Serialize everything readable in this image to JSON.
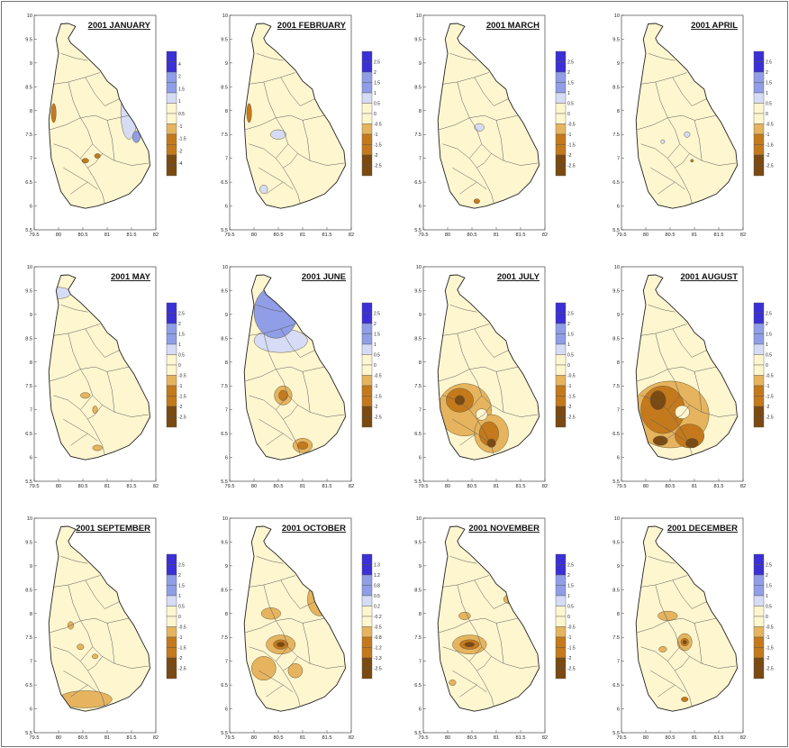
{
  "figure": {
    "y_ticks": [
      "5.5",
      "6",
      "6.5",
      "7",
      "7.5",
      "8",
      "8.5",
      "9",
      "9.5",
      "10"
    ],
    "x_ticks": [
      "79.5",
      "80",
      "80.5",
      "81",
      "81.5",
      "82"
    ],
    "colors": {
      "neg_dark": "#7a4a12",
      "neg_mid": "#c47a1c",
      "neg_light": "#e6b45e",
      "neutral": "#fdf6cf",
      "pos_light": "#d6dcf5",
      "pos_mid": "#8f9ee6",
      "pos_dark": "#3b2fd6",
      "land_line": "#5a5a5a"
    }
  },
  "panels": [
    {
      "title": "2001 JANUARY",
      "scale": [
        "4",
        "2",
        "1.5",
        "1",
        "0.5",
        "-1",
        "-1.5",
        "-2",
        "-4"
      ],
      "anomalies": [
        {
          "type": "pos_light",
          "lon": 81.45,
          "lat": 7.95,
          "rx": 0.17,
          "ry": 0.55
        },
        {
          "type": "pos_mid",
          "lon": 81.6,
          "lat": 7.45,
          "rx": 0.08,
          "ry": 0.12
        },
        {
          "type": "neg_mid",
          "lon": 79.9,
          "lat": 7.95,
          "rx": 0.05,
          "ry": 0.2
        },
        {
          "type": "neg_mid",
          "lon": 80.55,
          "lat": 6.95,
          "rx": 0.07,
          "ry": 0.05
        },
        {
          "type": "neg_mid",
          "lon": 80.8,
          "lat": 7.05,
          "rx": 0.06,
          "ry": 0.05
        }
      ]
    },
    {
      "title": "2001 FEBRUARY",
      "scale": [
        "2.5",
        "2",
        "1.5",
        "1",
        "0.5",
        "0",
        "-0.5",
        "-1",
        "-1.5",
        "-2",
        "-2.5"
      ],
      "anomalies": [
        {
          "type": "pos_light",
          "lon": 80.5,
          "lat": 7.5,
          "rx": 0.16,
          "ry": 0.1
        },
        {
          "type": "pos_light",
          "lon": 80.2,
          "lat": 6.35,
          "rx": 0.08,
          "ry": 0.09
        },
        {
          "type": "neg_mid",
          "lon": 79.9,
          "lat": 7.95,
          "rx": 0.05,
          "ry": 0.2
        }
      ]
    },
    {
      "title": "2001 MARCH",
      "scale": [
        "2.5",
        "2",
        "1.5",
        "1",
        "0.5",
        "0",
        "-0.5",
        "-1",
        "-1.5",
        "-2",
        "-2.5"
      ],
      "anomalies": [
        {
          "type": "pos_light",
          "lon": 80.65,
          "lat": 7.65,
          "rx": 0.1,
          "ry": 0.08
        },
        {
          "type": "neg_mid",
          "lon": 80.6,
          "lat": 6.1,
          "rx": 0.06,
          "ry": 0.05
        }
      ]
    },
    {
      "title": "2001 APRIL",
      "scale": [
        "2.5",
        "2",
        "1.5",
        "1",
        "0.5",
        "0",
        "-0.5",
        "-1",
        "-1.6",
        "-2",
        "-2.5"
      ],
      "anomalies": [
        {
          "type": "pos_light",
          "lon": 80.85,
          "lat": 7.5,
          "rx": 0.06,
          "ry": 0.06
        },
        {
          "type": "pos_light",
          "lon": 80.35,
          "lat": 7.35,
          "rx": 0.04,
          "ry": 0.04
        },
        {
          "type": "neg_mid",
          "lon": 80.95,
          "lat": 6.95,
          "rx": 0.03,
          "ry": 0.03
        }
      ]
    },
    {
      "title": "2001 MAY",
      "scale": [
        "2.5",
        "2",
        "1.5",
        "1",
        "0.5",
        "0",
        "-0.5",
        "-1",
        "-1.5",
        "-2",
        "-2.5"
      ],
      "anomalies": [
        {
          "type": "pos_light",
          "lon": 80.0,
          "lat": 9.45,
          "rx": 0.25,
          "ry": 0.12
        },
        {
          "type": "neg_light",
          "lon": 80.55,
          "lat": 7.3,
          "rx": 0.1,
          "ry": 0.06
        },
        {
          "type": "neg_light",
          "lon": 80.75,
          "lat": 7.0,
          "rx": 0.05,
          "ry": 0.08
        },
        {
          "type": "neg_light",
          "lon": 80.8,
          "lat": 6.2,
          "rx": 0.1,
          "ry": 0.06
        }
      ]
    },
    {
      "title": "2001 JUNE",
      "scale": [
        "2.5",
        "2",
        "1.5",
        "1",
        "0.5",
        "0",
        "-0.5",
        "-1",
        "-1.5",
        "-2",
        "-2.5"
      ],
      "anomalies": [
        {
          "type": "pos_light",
          "lon": 80.55,
          "lat": 8.45,
          "rx": 0.55,
          "ry": 0.25
        },
        {
          "type": "pos_mid",
          "lon": 80.45,
          "lat": 9.05,
          "rx": 0.45,
          "ry": 0.55
        },
        {
          "type": "neg_light",
          "lon": 80.6,
          "lat": 7.3,
          "rx": 0.18,
          "ry": 0.2
        },
        {
          "type": "neg_mid",
          "lon": 80.6,
          "lat": 7.3,
          "rx": 0.09,
          "ry": 0.11
        },
        {
          "type": "neg_light",
          "lon": 81.0,
          "lat": 6.25,
          "rx": 0.2,
          "ry": 0.15
        },
        {
          "type": "neg_mid",
          "lon": 81.0,
          "lat": 6.25,
          "rx": 0.11,
          "ry": 0.08
        }
      ]
    },
    {
      "title": "2001 JULY",
      "scale": [
        "2.5",
        "2",
        "1.5",
        "1",
        "0.5",
        "0",
        "-0.5",
        "-1",
        "-1.5",
        "-2",
        "-2.5"
      ],
      "anomalies": [
        {
          "type": "neg_light",
          "lon": 80.35,
          "lat": 7.0,
          "rx": 0.55,
          "ry": 0.55
        },
        {
          "type": "neg_light",
          "lon": 80.9,
          "lat": 6.5,
          "rx": 0.35,
          "ry": 0.4
        },
        {
          "type": "neg_mid",
          "lon": 80.25,
          "lat": 7.2,
          "rx": 0.28,
          "ry": 0.25
        },
        {
          "type": "neg_mid",
          "lon": 80.85,
          "lat": 6.5,
          "rx": 0.2,
          "ry": 0.25
        },
        {
          "type": "neg_dark",
          "lon": 80.25,
          "lat": 7.2,
          "rx": 0.1,
          "ry": 0.1
        },
        {
          "type": "neg_dark",
          "lon": 80.9,
          "lat": 6.3,
          "rx": 0.09,
          "ry": 0.09
        },
        {
          "type": "neutral",
          "lon": 80.7,
          "lat": 6.9,
          "rx": 0.12,
          "ry": 0.12
        }
      ]
    },
    {
      "title": "2001 AUGUST",
      "scale": [
        "2.5",
        "2",
        "1.5",
        "1",
        "0.5",
        "0",
        "-0.5",
        "-1",
        "-1.5",
        "-2",
        "-2.5"
      ],
      "anomalies": [
        {
          "type": "neg_light",
          "lon": 80.5,
          "lat": 6.9,
          "rx": 0.8,
          "ry": 0.7
        },
        {
          "type": "neg_mid",
          "lon": 80.35,
          "lat": 7.0,
          "rx": 0.45,
          "ry": 0.5
        },
        {
          "type": "neg_mid",
          "lon": 80.9,
          "lat": 6.45,
          "rx": 0.3,
          "ry": 0.25
        },
        {
          "type": "neg_dark",
          "lon": 80.25,
          "lat": 7.2,
          "rx": 0.16,
          "ry": 0.2
        },
        {
          "type": "neg_dark",
          "lon": 80.3,
          "lat": 6.35,
          "rx": 0.15,
          "ry": 0.1
        },
        {
          "type": "neg_dark",
          "lon": 80.95,
          "lat": 6.3,
          "rx": 0.13,
          "ry": 0.1
        },
        {
          "type": "neutral",
          "lon": 80.75,
          "lat": 6.95,
          "rx": 0.15,
          "ry": 0.14
        }
      ]
    },
    {
      "title": "2001 SEPTEMBER",
      "scale": [
        "2.5",
        "2",
        "1.5",
        "1",
        "0.5",
        "0",
        "-0.5",
        "-1",
        "-1.5",
        "-2",
        "-2.5"
      ],
      "anomalies": [
        {
          "type": "neg_light",
          "lon": 80.55,
          "lat": 6.2,
          "rx": 0.55,
          "ry": 0.18
        },
        {
          "type": "neg_light",
          "lon": 80.25,
          "lat": 7.75,
          "rx": 0.06,
          "ry": 0.08
        },
        {
          "type": "neg_light",
          "lon": 80.45,
          "lat": 7.3,
          "rx": 0.07,
          "ry": 0.06
        },
        {
          "type": "neg_light",
          "lon": 80.75,
          "lat": 7.1,
          "rx": 0.06,
          "ry": 0.05
        }
      ]
    },
    {
      "title": "2001 OCTOBER",
      "scale": [
        "1.3",
        "1.2",
        "0.8",
        "0.5",
        "0.2",
        "-0.2",
        "-0.5",
        "-0.8",
        "-1.2",
        "-1.3",
        "-2.5"
      ],
      "anomalies": [
        {
          "type": "neg_light",
          "lon": 81.35,
          "lat": 8.3,
          "rx": 0.25,
          "ry": 0.35
        },
        {
          "type": "neg_light",
          "lon": 80.35,
          "lat": 8.0,
          "rx": 0.2,
          "ry": 0.12
        },
        {
          "type": "neg_light",
          "lon": 80.55,
          "lat": 7.35,
          "rx": 0.3,
          "ry": 0.2
        },
        {
          "type": "neg_light",
          "lon": 80.2,
          "lat": 6.85,
          "rx": 0.25,
          "ry": 0.25
        },
        {
          "type": "neg_light",
          "lon": 80.85,
          "lat": 6.8,
          "rx": 0.15,
          "ry": 0.15
        },
        {
          "type": "neg_mid",
          "lon": 80.55,
          "lat": 7.35,
          "rx": 0.15,
          "ry": 0.1
        },
        {
          "type": "neg_dark",
          "lon": 80.55,
          "lat": 7.35,
          "rx": 0.08,
          "ry": 0.05
        }
      ]
    },
    {
      "title": "2001 NOVEMBER",
      "scale": [
        "2.5",
        "2",
        "1.5",
        "1",
        "0.5",
        "0",
        "-0.5",
        "-1",
        "-1.5",
        "-2",
        "-2.5"
      ],
      "anomalies": [
        {
          "type": "neg_light",
          "lon": 80.45,
          "lat": 7.35,
          "rx": 0.35,
          "ry": 0.2
        },
        {
          "type": "neg_light",
          "lon": 81.3,
          "lat": 8.3,
          "rx": 0.15,
          "ry": 0.1
        },
        {
          "type": "neg_light",
          "lon": 80.35,
          "lat": 7.95,
          "rx": 0.12,
          "ry": 0.08
        },
        {
          "type": "neg_light",
          "lon": 80.1,
          "lat": 6.55,
          "rx": 0.07,
          "ry": 0.06
        },
        {
          "type": "neg_mid",
          "lon": 80.45,
          "lat": 7.35,
          "rx": 0.2,
          "ry": 0.1
        },
        {
          "type": "neg_dark",
          "lon": 80.45,
          "lat": 7.35,
          "rx": 0.1,
          "ry": 0.05
        }
      ]
    },
    {
      "title": "2001 DECEMBER",
      "scale": [
        "2.5",
        "2",
        "1.5",
        "1",
        "0.5",
        "0",
        "-0.5",
        "-1",
        "-1.5",
        "-2",
        "-2.5"
      ],
      "anomalies": [
        {
          "type": "neg_light",
          "lon": 80.45,
          "lat": 7.95,
          "rx": 0.2,
          "ry": 0.1
        },
        {
          "type": "neg_light",
          "lon": 80.8,
          "lat": 7.4,
          "rx": 0.15,
          "ry": 0.18
        },
        {
          "type": "neg_light",
          "lon": 80.35,
          "lat": 7.25,
          "rx": 0.08,
          "ry": 0.06
        },
        {
          "type": "neg_mid",
          "lon": 80.8,
          "lat": 6.2,
          "rx": 0.07,
          "ry": 0.05
        },
        {
          "type": "neg_mid",
          "lon": 80.8,
          "lat": 7.4,
          "rx": 0.08,
          "ry": 0.08
        },
        {
          "type": "neg_dark",
          "lon": 80.8,
          "lat": 7.4,
          "rx": 0.04,
          "ry": 0.04
        }
      ]
    }
  ]
}
